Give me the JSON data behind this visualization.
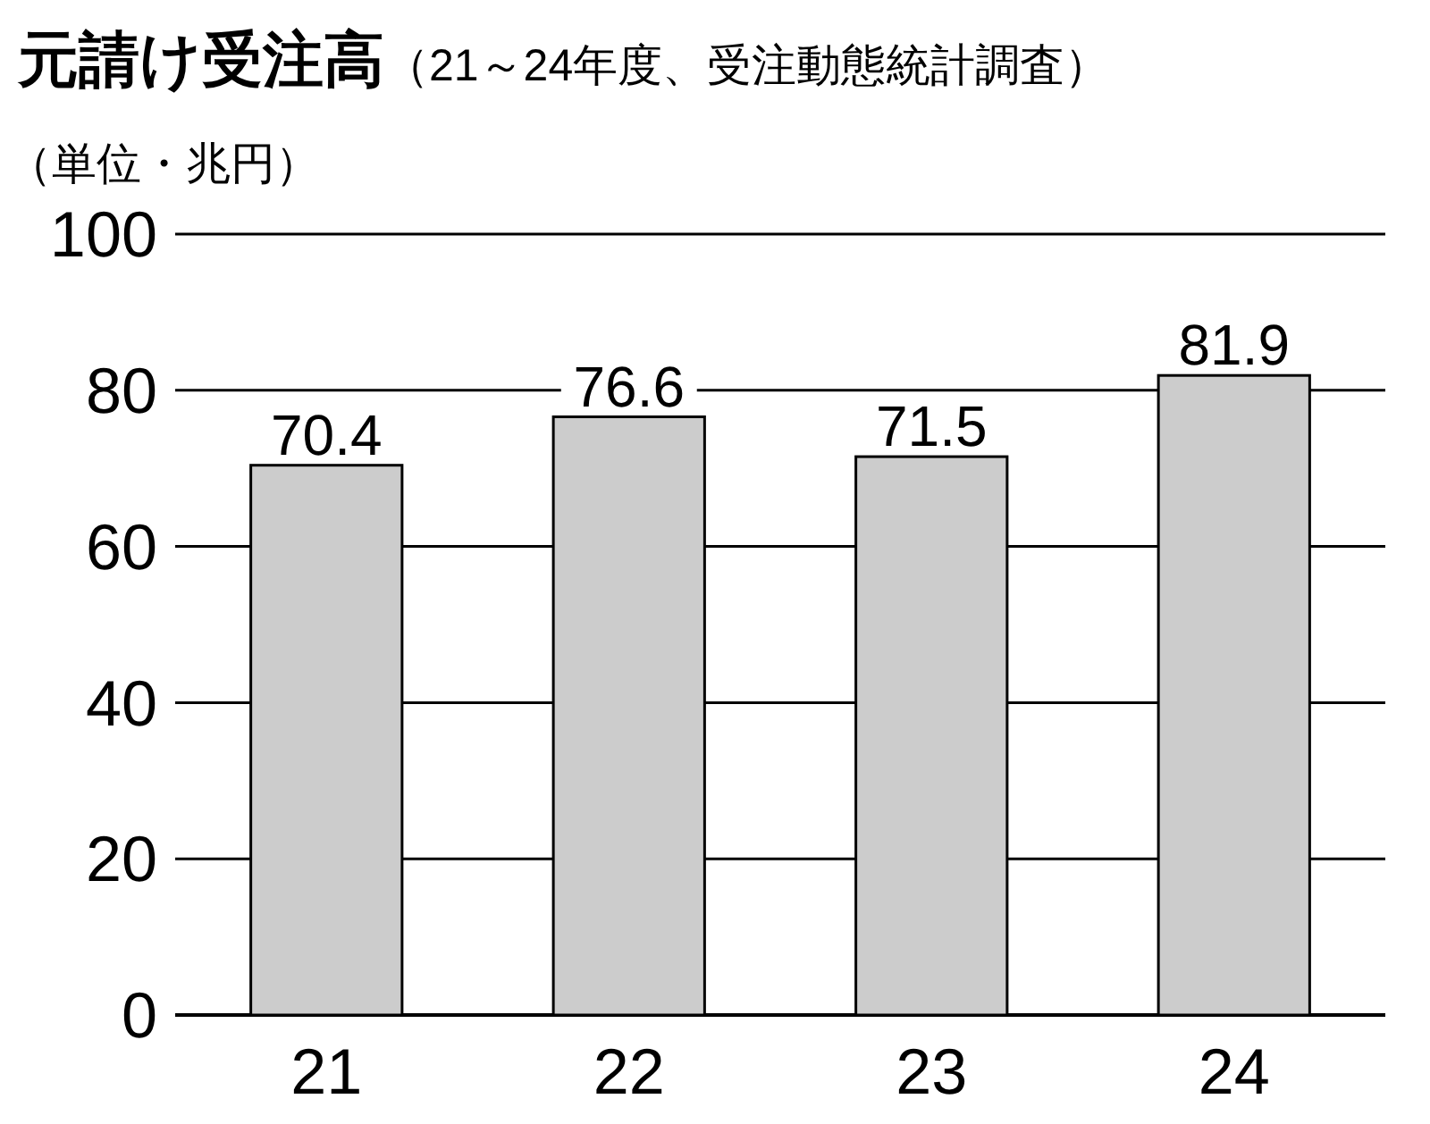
{
  "chart_data": {
    "type": "bar",
    "title": "元請け受注高",
    "subtitle": "（21～24年度、受注動態統計調査）",
    "ylabel": "（単位・兆円）",
    "categories": [
      "21",
      "22",
      "23",
      "24"
    ],
    "values": [
      70.4,
      76.6,
      71.5,
      81.9
    ],
    "color": "#cccccc",
    "ylim": [
      0,
      100
    ],
    "yticks": [
      0,
      20,
      40,
      60,
      80,
      100
    ],
    "grid": "y",
    "data_labels": true
  }
}
